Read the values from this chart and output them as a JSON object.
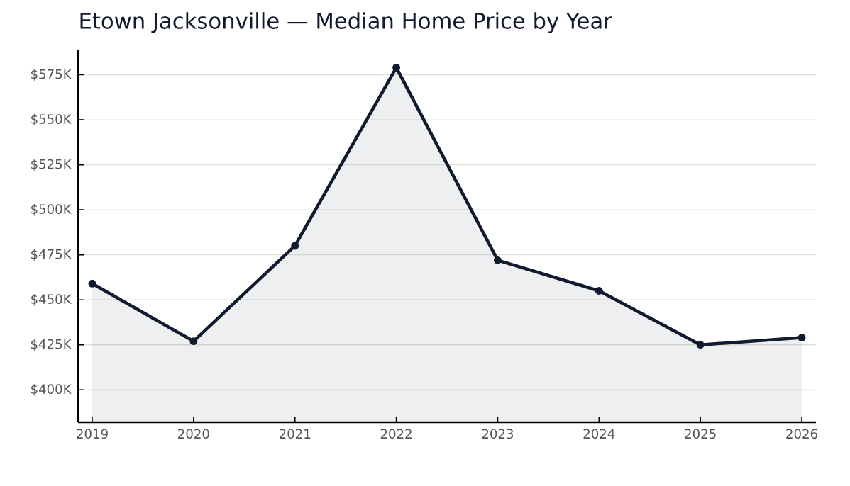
{
  "chart_data": {
    "type": "area",
    "title": "Etown Jacksonville — Median Home Price by Year",
    "x": [
      2019,
      2020,
      2021,
      2022,
      2023,
      2024,
      2025,
      2026
    ],
    "series": [
      {
        "color": "#111a2e",
        "values": [
          459,
          427,
          480,
          579,
          472,
          455,
          425,
          429
        ]
      }
    ],
    "xlim": [
      2018.86,
      2026.14
    ],
    "ylim": [
      382,
      589
    ],
    "xticks": [
      2019,
      2020,
      2021,
      2022,
      2023,
      2024,
      2025,
      2026
    ],
    "yticks": [
      {
        "value": 400,
        "label": "$400K"
      },
      {
        "value": 425,
        "label": "$425K"
      },
      {
        "value": 450,
        "label": "$450K"
      },
      {
        "value": 475,
        "label": "$475K"
      },
      {
        "value": 500,
        "label": "$500K"
      },
      {
        "value": 525,
        "label": "$525K"
      },
      {
        "value": 550,
        "label": "$550K"
      },
      {
        "value": 575,
        "label": "$575K"
      }
    ],
    "grid": "y",
    "marker": "circle",
    "line_style": "solid"
  }
}
